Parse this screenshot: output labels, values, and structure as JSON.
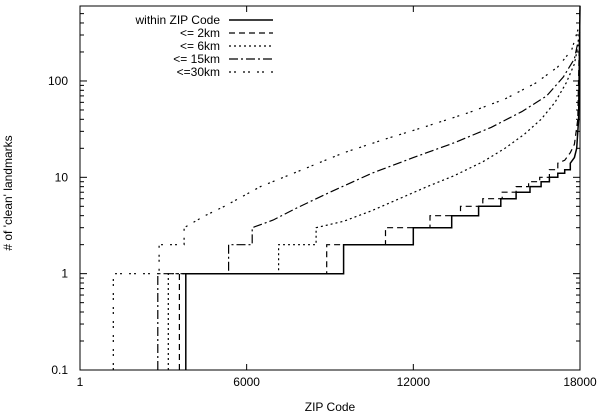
{
  "chart_data": {
    "type": "line",
    "title": "",
    "xlabel": "ZIP Code",
    "ylabel": "# of 'clean' landmarks",
    "xlim": [
      1,
      18000
    ],
    "ylim": [
      0.1,
      600
    ],
    "yscale": "log",
    "grid": false,
    "legend_position": "top-left",
    "x_ticks": [
      {
        "value": 1,
        "label": "1"
      },
      {
        "value": 6000,
        "label": "6000"
      },
      {
        "value": 12000,
        "label": "12000"
      },
      {
        "value": 18000,
        "label": "18000"
      }
    ],
    "y_ticks": [
      {
        "value": 0.1,
        "label": "0.1"
      },
      {
        "value": 1,
        "label": "1"
      },
      {
        "value": 10,
        "label": "10"
      },
      {
        "value": 100,
        "label": "100"
      }
    ],
    "series": [
      {
        "name": "within ZIP Code",
        "dash": "",
        "x": [
          3810,
          3810,
          9490,
          9490,
          12000,
          12000,
          13380,
          13380,
          14350,
          14350,
          15150,
          15150,
          15700,
          15700,
          16200,
          16200,
          16600,
          16600,
          16900,
          16900,
          17200,
          17200,
          17450,
          17450,
          17650,
          17650,
          17800,
          17880,
          17950,
          18000
        ],
        "y": [
          0.1,
          1,
          1,
          2,
          2,
          3,
          3,
          4,
          4,
          5,
          5,
          6,
          6,
          7,
          7,
          8,
          8,
          9,
          9,
          10,
          10,
          11,
          11,
          12,
          12,
          14,
          16,
          20,
          40,
          600
        ]
      },
      {
        "name": "<= 2km",
        "dash": "6,4",
        "x": [
          3580,
          3580,
          8880,
          8880,
          11000,
          11000,
          12600,
          12600,
          13700,
          13700,
          14500,
          14500,
          15200,
          15200,
          15700,
          15700,
          16150,
          16150,
          16550,
          16550,
          16900,
          16900,
          17200,
          17200,
          17450,
          17650,
          17800,
          17920,
          18000
        ],
        "y": [
          0.1,
          1,
          1,
          2,
          2,
          3,
          3,
          4,
          4,
          5,
          5,
          6,
          6,
          7,
          7,
          8,
          8,
          9,
          9,
          10,
          10,
          12,
          12,
          14,
          15,
          18,
          22,
          40,
          600
        ]
      },
      {
        "name": "<= 6km",
        "dash": "2,3",
        "x": [
          3180,
          3180,
          7150,
          7150,
          8500,
          8500,
          9500,
          10500,
          11500,
          12500,
          13500,
          14500,
          15300,
          16000,
          16600,
          17100,
          17500,
          17800,
          17950,
          18000
        ],
        "y": [
          0.1,
          1,
          1,
          2,
          2,
          3,
          3.5,
          4.5,
          6,
          8,
          10.5,
          14.5,
          20,
          28,
          40,
          60,
          95,
          150,
          250,
          350
        ]
      },
      {
        "name": "<= 15km",
        "dash": "9,3,2,3",
        "x": [
          2800,
          2800,
          5350,
          5350,
          6200,
          6200,
          6950,
          7800,
          9000,
          10500,
          12000,
          13500,
          14800,
          15900,
          16800,
          17400,
          17800,
          18000
        ],
        "y": [
          0.1,
          1,
          1,
          2,
          2,
          3,
          3.6,
          4.8,
          7,
          11,
          16,
          23,
          33,
          48,
          70,
          110,
          170,
          320
        ]
      },
      {
        "name": "<=30km",
        "dash": "2,3,2,7",
        "x": [
          1200,
          1200,
          2850,
          2850,
          3750,
          3750,
          4500,
          5200,
          6500,
          8000,
          9500,
          11000,
          12500,
          14000,
          15300,
          16400,
          17200,
          17700,
          18000
        ],
        "y": [
          0.1,
          1,
          1,
          2,
          2,
          3,
          4,
          5,
          8,
          12,
          18,
          25,
          34,
          47,
          65,
          95,
          140,
          210,
          400
        ]
      }
    ]
  }
}
